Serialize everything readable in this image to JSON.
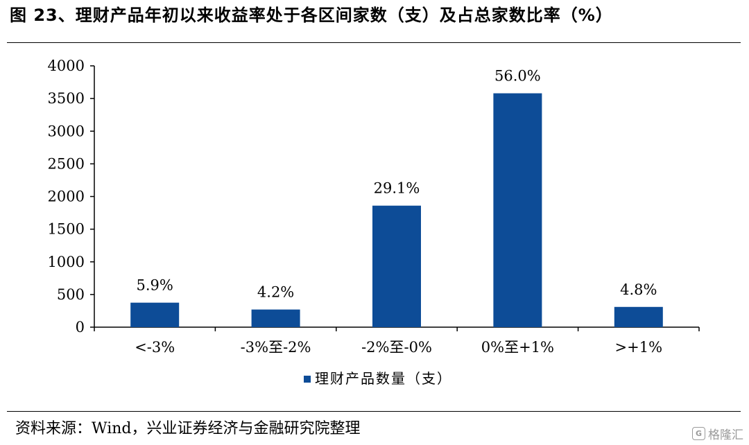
{
  "title": "图 23、理财产品年初以来收益率处于各区间家数（支）及占总家数比率（%）",
  "source": "资料来源：Wind，兴业证券经济与金融研究院整理",
  "watermark": {
    "text": "格隆汇",
    "icon": "logo-icon"
  },
  "chart_data": {
    "type": "bar",
    "title": "",
    "xlabel": "",
    "ylabel": "",
    "categories": [
      "<-3%",
      "-3%至-2%",
      "-2%至-0%",
      "0%至+1%",
      ">+1%"
    ],
    "series": [
      {
        "name": "理财产品数量（支）",
        "values": [
          375,
          270,
          1860,
          3580,
          310
        ],
        "data_labels": [
          "5.9%",
          "4.2%",
          "29.1%",
          "56.0%",
          "4.8%"
        ],
        "color": "#0d4c97"
      }
    ],
    "ylim": [
      0,
      4000
    ],
    "yticks": [
      0,
      500,
      1000,
      1500,
      2000,
      2500,
      3000,
      3500,
      4000
    ],
    "grid": false,
    "legend_position": "bottom-center"
  }
}
